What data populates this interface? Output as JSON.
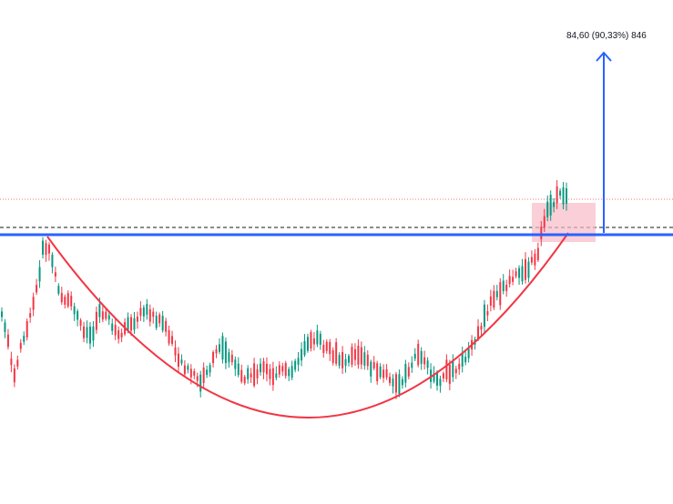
{
  "chart_data": {
    "type": "candlestick",
    "title": "",
    "xlabel": "",
    "ylabel": "",
    "grid": false,
    "axes_visible": false,
    "colors": {
      "up": "#089981",
      "down": "#f23645",
      "resistance_line": "#2962ff",
      "cup_curve": "#f23645",
      "breakout_box": "#f8bbc6",
      "target_arrow": "#2962ff",
      "dotted_level": "#f23645",
      "dashed_level": "#131722"
    },
    "candles_summary": {
      "count": 180,
      "pattern": "cup breakout above horizontal resistance"
    },
    "measure": {
      "label": "84,60 (90,33%) 846"
    }
  }
}
